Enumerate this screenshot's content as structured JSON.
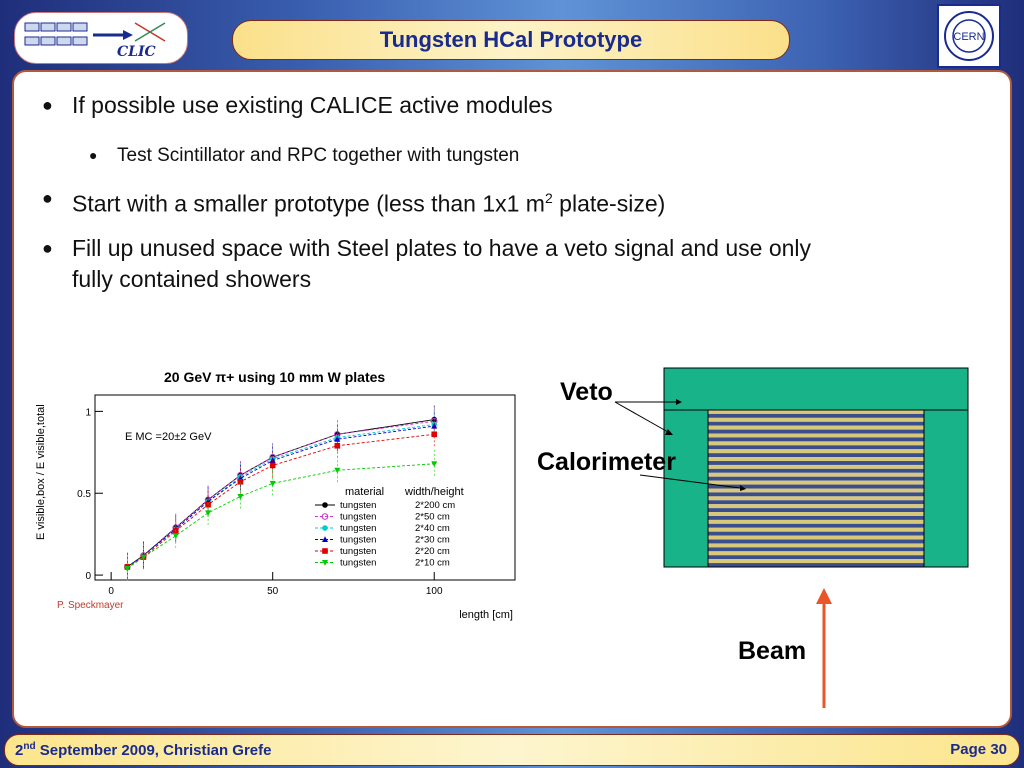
{
  "header": {
    "title": "Tungsten HCal Prototype",
    "logo_text": "CLIC",
    "cern_text": "CERN"
  },
  "bullets": [
    {
      "text": "If possible use existing CALICE active modules"
    },
    {
      "text": "Test Scintillator and RPC together with tungsten"
    },
    {
      "text_before_sup": "Start with a smaller prototype (less than 1x1 m",
      "sup": "2",
      "text_after_sup": " plate-size)"
    },
    {
      "line1": "Fill up unused space with Steel plates to have a veto signal and use only",
      "line2": "fully contained showers"
    }
  ],
  "chart_data": {
    "type": "line",
    "title": "20 GeV π+ using 10 mm W plates",
    "xlabel": "length  [cm]",
    "ylabel": "E visible,box / E visible,total",
    "xlim": [
      -5,
      125
    ],
    "ylim": [
      -0.03,
      1.1
    ],
    "xticks": [
      "0",
      "50",
      "100"
    ],
    "yticks": [
      "0",
      "0.5",
      "1"
    ],
    "annotation": "E MC =20±2 GeV",
    "legend_header": [
      "material",
      "width/height"
    ],
    "legend_placement": "bottom-right",
    "x": [
      5,
      10,
      20,
      30,
      40,
      50,
      70,
      100
    ],
    "series": [
      {
        "material": "tungsten",
        "size": "2*200 cm",
        "color": "#000000",
        "marker": "circle",
        "values": [
          0.05,
          0.12,
          0.29,
          0.46,
          0.61,
          0.72,
          0.86,
          0.95
        ]
      },
      {
        "material": "tungsten",
        "size": "2*50 cm",
        "color": "#cc33cc",
        "marker": "circle-open",
        "values": [
          0.05,
          0.12,
          0.29,
          0.46,
          0.61,
          0.72,
          0.86,
          0.94
        ]
      },
      {
        "material": "tungsten",
        "size": "2*40 cm",
        "color": "#00cccc",
        "marker": "circle",
        "values": [
          0.05,
          0.12,
          0.28,
          0.45,
          0.6,
          0.71,
          0.84,
          0.92
        ]
      },
      {
        "material": "tungsten",
        "size": "2*30 cm",
        "color": "#0000cc",
        "marker": "triangle",
        "values": [
          0.05,
          0.12,
          0.28,
          0.45,
          0.59,
          0.7,
          0.83,
          0.91
        ]
      },
      {
        "material": "tungsten",
        "size": "2*20 cm",
        "color": "#e00000",
        "marker": "square",
        "values": [
          0.05,
          0.11,
          0.27,
          0.43,
          0.57,
          0.67,
          0.79,
          0.86
        ]
      },
      {
        "material": "tungsten",
        "size": "2*10 cm",
        "color": "#00cc00",
        "marker": "triangle-down",
        "values": [
          0.04,
          0.11,
          0.24,
          0.38,
          0.48,
          0.56,
          0.64,
          0.68
        ]
      }
    ]
  },
  "credit": "P. Speckmayer",
  "diagram": {
    "veto_label": "Veto",
    "calorimeter_label": "Calorimeter",
    "beam_label": "Beam"
  },
  "footer": {
    "date_prefix": "2",
    "date_sup": "nd",
    "date_rest": " September 2009, Christian Grefe",
    "page_label": "Page",
    "page_number": "30"
  },
  "colors": {
    "title_text": "#1a2b8f",
    "module_green": "#19b38a",
    "beam_arrow": "#e8562a"
  }
}
